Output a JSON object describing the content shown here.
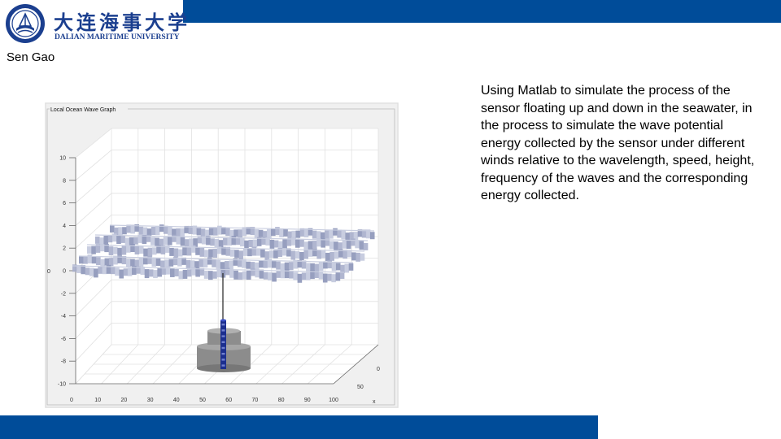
{
  "header": {
    "university_name_cn": "大连海事大学",
    "university_name_en": "DALIAN MARITIME UNIVERSITY",
    "emblem_icon": "university-emblem-icon",
    "bar_color": "#004c99"
  },
  "author": "Sen Gao",
  "figure": {
    "panel_title": "Local Ocean Wave Graph",
    "z_ticks": [
      "10",
      "8",
      "6",
      "4",
      "2",
      "0",
      "-2",
      "-4",
      "-6",
      "-8",
      "-10"
    ],
    "x_ticks": [
      "0",
      "10",
      "20",
      "30",
      "40",
      "50",
      "60",
      "70",
      "80",
      "90",
      "100"
    ],
    "depth_ticks": [
      "0",
      "50"
    ],
    "depth_axis_label": "x"
  },
  "description": "Using Matlab to simulate the process of the sensor floating up and down in the seawater, in the process to simulate the wave potential energy collected by the sensor under different winds relative to the wavelength, speed, height, frequency of the waves and the corresponding energy collected."
}
